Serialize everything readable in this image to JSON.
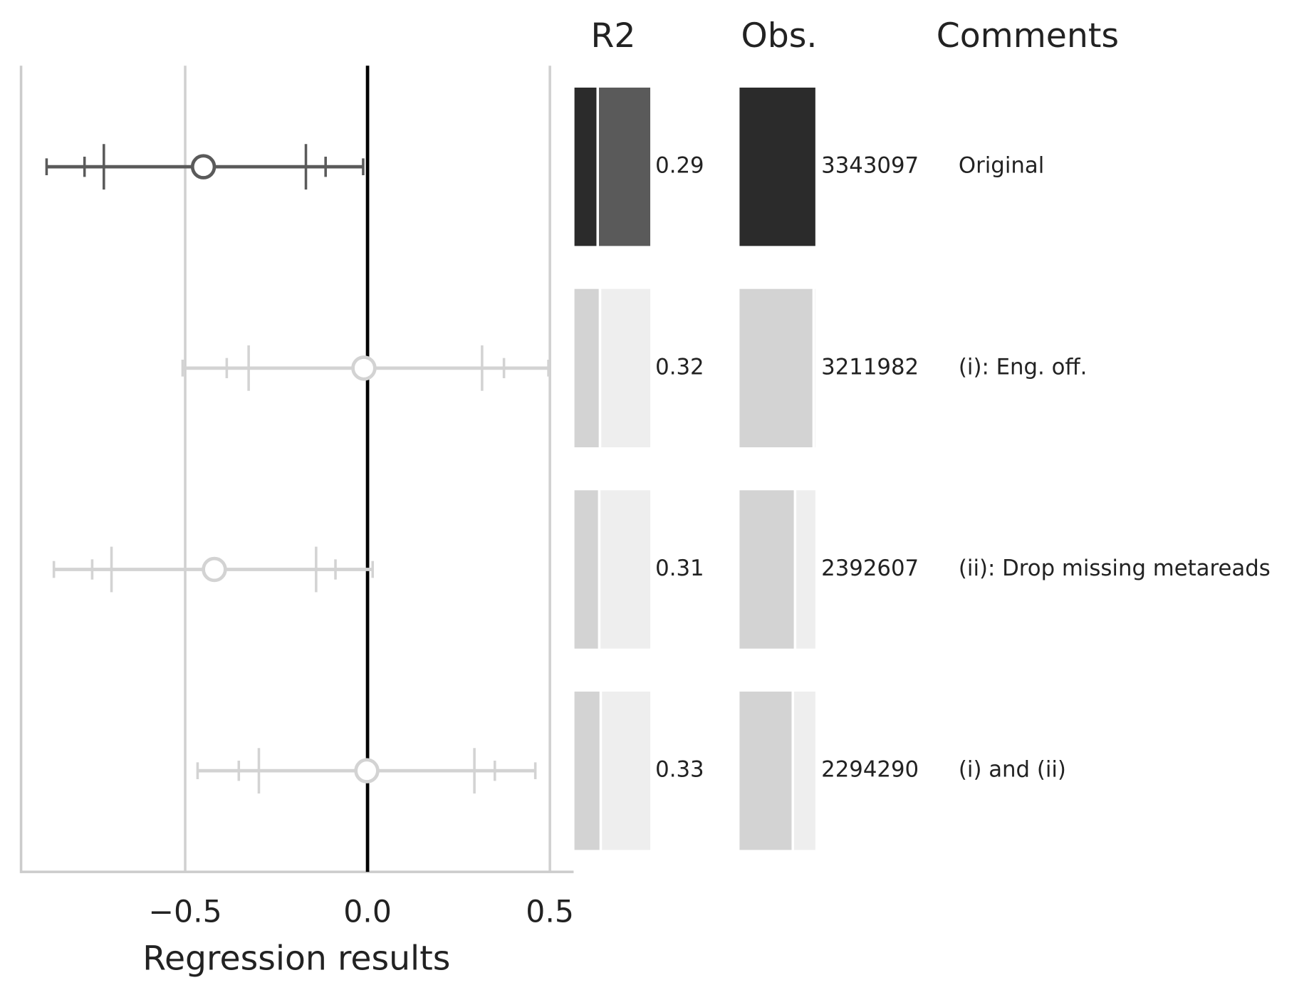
{
  "chart_data": {
    "type": "forest",
    "xlabel": "Regression results",
    "xlim": [
      -0.95,
      0.565
    ],
    "xticks": [
      {
        "value": -0.5,
        "label": "−0.5"
      },
      {
        "value": 0,
        "label": "0.0"
      },
      0.5
    ],
    "grid": true,
    "reference_line": 0,
    "columns": [
      "R2",
      "Obs.",
      "Comments"
    ],
    "r2lim": [
      0,
      1
    ],
    "rows": [
      {
        "estimate": -0.45,
        "intervals": [
          [
            -0.88,
            -0.012
          ],
          [
            -0.776,
            -0.115
          ],
          [
            -0.723,
            -0.169
          ]
        ],
        "color": "#5a5a5a",
        "bar_color": "#2b2b2b",
        "rest_color": "#5a5a5a",
        "r2": 0.29,
        "obs": 3343097,
        "comment": "Original"
      },
      {
        "estimate": -0.01,
        "intervals": [
          [
            -0.507,
            0.496
          ],
          [
            -0.386,
            0.374
          ],
          [
            -0.326,
            0.314
          ]
        ],
        "color": "#d3d3d3",
        "bar_color": "#d3d3d3",
        "rest_color": "#eeeeee",
        "r2": 0.32,
        "obs": 3211982,
        "comment": "(i): Eng. off."
      },
      {
        "estimate": -0.42,
        "intervals": [
          [
            -0.86,
            0.014
          ],
          [
            -0.755,
            -0.088
          ],
          [
            -0.702,
            -0.141
          ]
        ],
        "color": "#d3d3d3",
        "bar_color": "#d3d3d3",
        "rest_color": "#eeeeee",
        "r2": 0.31,
        "obs": 2392607,
        "comment": "(ii): Drop missing metareads"
      },
      {
        "estimate": -0.002,
        "intervals": [
          [
            -0.466,
            0.46
          ],
          [
            -0.353,
            0.349
          ],
          [
            -0.298,
            0.293
          ]
        ],
        "color": "#d3d3d3",
        "bar_color": "#d3d3d3",
        "rest_color": "#eeeeee",
        "r2": 0.33,
        "obs": 2294290,
        "comment": "(i) and (ii)"
      }
    ]
  }
}
